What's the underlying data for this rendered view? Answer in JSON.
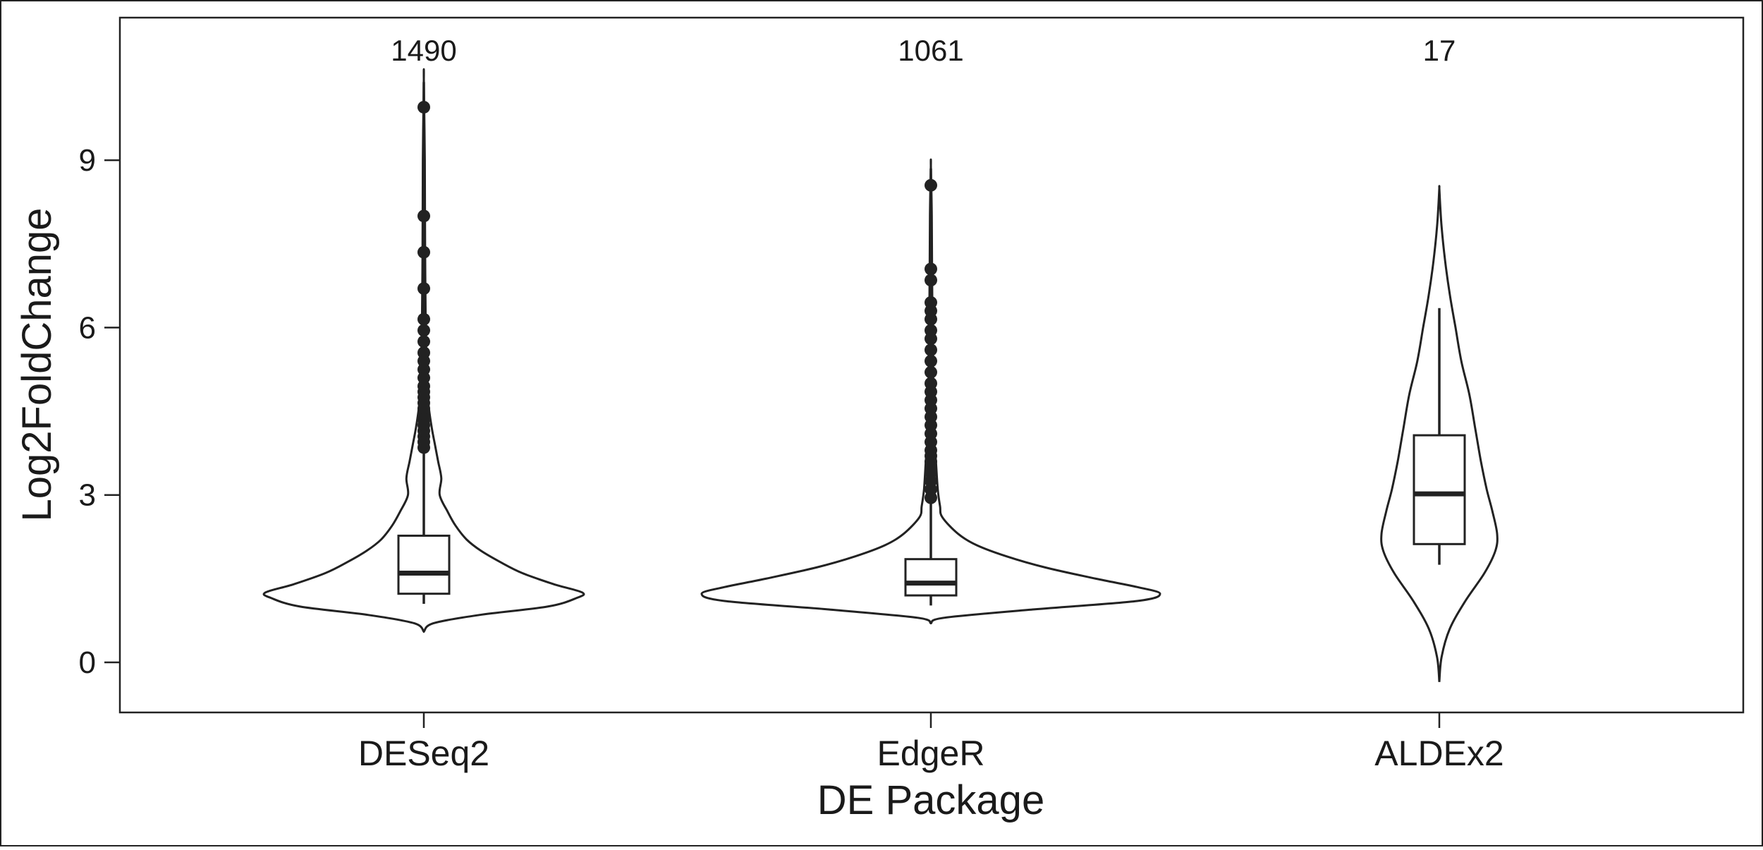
{
  "chart_data": {
    "type": "violin",
    "title": "",
    "xlabel": "DE Package",
    "ylabel": "Log2FoldChange",
    "categories": [
      "DESeq2",
      "EdgeR",
      "ALDEx2"
    ],
    "counts": [
      "1490",
      "1061",
      "17"
    ],
    "y_ticks": [
      0,
      3,
      6,
      9
    ],
    "ylim": [
      -0.9,
      11.5
    ],
    "grid": false,
    "legend": "none",
    "colors": {
      "stroke": "#222222",
      "fill": "#ffffff",
      "background": "#ffffff"
    },
    "groups": [
      {
        "name": "DESeq2",
        "box": {
          "whisker_low": 1.05,
          "q1": 1.23,
          "median": 1.6,
          "q3": 2.27,
          "whisker_high": 10.4
        },
        "outliers": [
          9.95,
          8.0,
          7.35,
          6.7,
          6.15,
          5.95,
          5.75,
          5.55,
          5.4,
          5.25,
          5.1,
          4.95,
          4.85,
          4.75,
          4.65,
          4.55,
          4.45,
          4.35,
          4.25,
          4.15,
          4.05,
          3.95,
          3.85
        ],
        "violin_profile": [
          [
            0.55,
            0.0
          ],
          [
            0.7,
            0.06
          ],
          [
            0.85,
            0.35
          ],
          [
            1.0,
            0.78
          ],
          [
            1.15,
            0.96
          ],
          [
            1.25,
            1.0
          ],
          [
            1.4,
            0.82
          ],
          [
            1.6,
            0.62
          ],
          [
            1.8,
            0.48
          ],
          [
            2.0,
            0.36
          ],
          [
            2.2,
            0.27
          ],
          [
            2.45,
            0.2
          ],
          [
            2.7,
            0.15
          ],
          [
            3.0,
            0.1
          ],
          [
            3.3,
            0.11
          ],
          [
            3.6,
            0.09
          ],
          [
            3.9,
            0.07
          ],
          [
            4.2,
            0.05
          ],
          [
            4.6,
            0.03
          ],
          [
            5.0,
            0.02
          ],
          [
            6.0,
            0.012
          ],
          [
            7.5,
            0.008
          ],
          [
            9.0,
            0.006
          ],
          [
            10.45,
            0.0
          ]
        ]
      },
      {
        "name": "EdgeR",
        "box": {
          "whisker_low": 1.02,
          "q1": 1.2,
          "median": 1.42,
          "q3": 1.85,
          "whisker_high": 8.85
        },
        "outliers": [
          8.55,
          7.05,
          6.85,
          6.45,
          6.3,
          6.15,
          5.95,
          5.8,
          5.6,
          5.4,
          5.2,
          5.0,
          4.85,
          4.7,
          4.55,
          4.4,
          4.25,
          4.1,
          3.95,
          3.8,
          3.7,
          3.6,
          3.5,
          3.4,
          3.25,
          3.1,
          2.95
        ],
        "violin_profile": [
          [
            0.7,
            0.0
          ],
          [
            0.8,
            0.06
          ],
          [
            0.95,
            0.45
          ],
          [
            1.1,
            0.9
          ],
          [
            1.23,
            1.0
          ],
          [
            1.35,
            0.9
          ],
          [
            1.5,
            0.72
          ],
          [
            1.7,
            0.5
          ],
          [
            1.9,
            0.33
          ],
          [
            2.1,
            0.2
          ],
          [
            2.3,
            0.12
          ],
          [
            2.6,
            0.05
          ],
          [
            2.8,
            0.04
          ],
          [
            3.1,
            0.03
          ],
          [
            3.6,
            0.022
          ],
          [
            4.0,
            0.015
          ],
          [
            5.0,
            0.01
          ],
          [
            6.5,
            0.006
          ],
          [
            8.0,
            0.004
          ],
          [
            8.9,
            0.0
          ]
        ]
      },
      {
        "name": "ALDEx2",
        "box": {
          "whisker_low": 1.75,
          "q1": 2.12,
          "median": 3.02,
          "q3": 4.07,
          "whisker_high": 6.35
        },
        "outliers": [],
        "violin_profile": [
          [
            -0.35,
            0.0
          ],
          [
            0.1,
            0.04
          ],
          [
            0.6,
            0.18
          ],
          [
            1.1,
            0.45
          ],
          [
            1.6,
            0.78
          ],
          [
            2.0,
            0.97
          ],
          [
            2.3,
            1.0
          ],
          [
            2.7,
            0.92
          ],
          [
            3.1,
            0.82
          ],
          [
            3.6,
            0.72
          ],
          [
            4.2,
            0.62
          ],
          [
            4.8,
            0.52
          ],
          [
            5.4,
            0.38
          ],
          [
            6.0,
            0.28
          ],
          [
            6.6,
            0.18
          ],
          [
            7.2,
            0.1
          ],
          [
            7.8,
            0.04
          ],
          [
            8.2,
            0.015
          ],
          [
            8.5,
            0.0
          ]
        ]
      }
    ]
  }
}
